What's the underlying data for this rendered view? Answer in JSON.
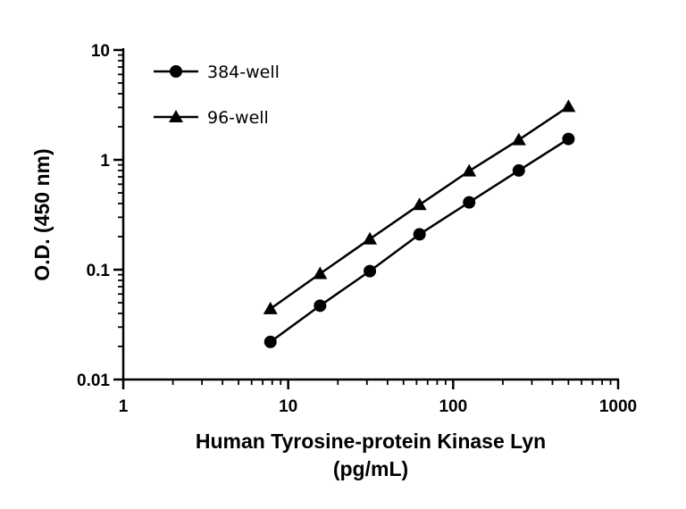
{
  "chart_data": {
    "type": "scatter",
    "xscale": "log",
    "yscale": "log",
    "xlim": [
      1,
      1000
    ],
    "ylim": [
      0.01,
      10
    ],
    "xlabel_line1": "Human Tyrosine-protein Kinase Lyn",
    "xlabel_line2": "(pg/mL)",
    "ylabel": "O.D. (450 nm)",
    "x_ticks": [
      1,
      10,
      100,
      1000
    ],
    "x_tick_labels": [
      "1",
      "10",
      "100",
      "1000"
    ],
    "y_ticks": [
      0.01,
      0.1,
      1,
      10
    ],
    "y_tick_labels": [
      "0.01",
      "0.1",
      "1",
      "10"
    ],
    "grid": false,
    "legend_position": "top-left",
    "series": [
      {
        "name": "384-well",
        "marker": "circle",
        "color": "#000000",
        "x": [
          7.8,
          15.6,
          31.25,
          62.5,
          125,
          250,
          500
        ],
        "y": [
          0.022,
          0.047,
          0.097,
          0.21,
          0.41,
          0.8,
          1.55
        ]
      },
      {
        "name": "96-well",
        "marker": "triangle",
        "color": "#000000",
        "x": [
          7.8,
          15.6,
          31.25,
          62.5,
          125,
          250,
          500
        ],
        "y": [
          0.044,
          0.092,
          0.19,
          0.39,
          0.79,
          1.52,
          3.05
        ]
      }
    ]
  }
}
